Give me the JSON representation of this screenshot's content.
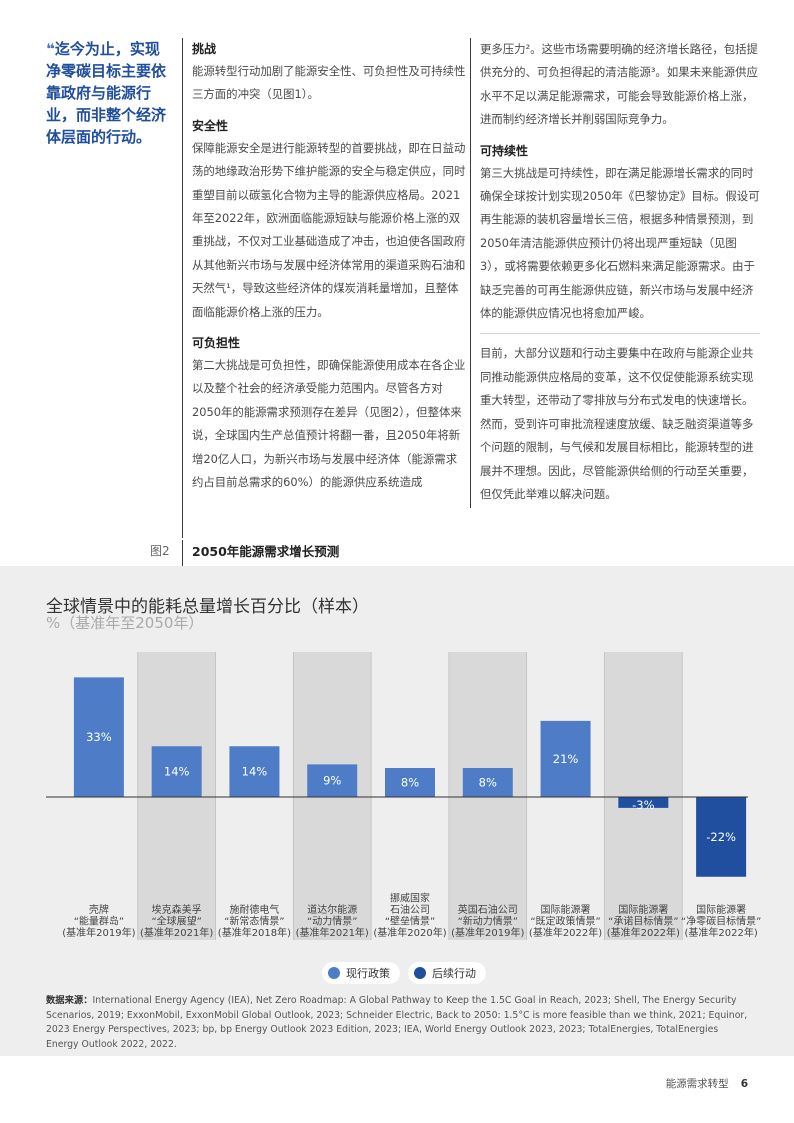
{
  "pullquote": {
    "mark": "❝",
    "text": "迄今为止，实现净零碳目标主要依靠政府与能源行业，而非整个经济体层面的行动。"
  },
  "col1": {
    "h_challenge": "挑战",
    "p_intro": "能源转型行动加剧了能源安全性、可负担性及可持续性三方面的冲突（见图1）。",
    "h_security": "安全性",
    "p_security": "保障能源安全是进行能源转型的首要挑战，即在日益动荡的地缘政治形势下维护能源的安全与稳定供应，同时重塑目前以碳氢化合物为主导的能源供应格局。2021年至2022年，欧洲面临能源短缺与能源价格上涨的双重挑战，不仅对工业基础造成了冲击，也迫使各国政府从其他新兴市场与发展中经济体常用的渠道采购石油和天然气¹，导致这些经济体的煤炭消耗量增加，且整体面临能源价格上涨的压力。",
    "h_afford": "可负担性",
    "p_afford": "第二大挑战是可负担性，即确保能源使用成本在各企业以及整个社会的经济承受能力范围内。尽管各方对2050年的能源需求预测存在差异（见图2），但整体来说，全球国内生产总值预计将翻一番，且2050年将新增20亿人口，为新兴市场与发展中经济体（能源需求约占目前总需求的60%）的能源供应系统造成"
  },
  "col2": {
    "p_cont": "更多压力²。这些市场需要明确的经济增长路径，包括提供充分的、可负担得起的清洁能源³。如果未来能源供应水平不足以满足能源需求，可能会导致能源价格上涨，进而制约经济增长并削弱国际竞争力。",
    "h_sustain": "可持续性",
    "p_sustain": "第三大挑战是可持续性，即在满足能源增长需求的同时确保全球按计划实现2050年《巴黎协定》目标。假设可再生能源的装机容量增长三倍，根据多种情景预测，到2050年清洁能源供应预计仍将出现严重短缺（见图3），或将需要依赖更多化石燃料来满足能源需求。由于缺乏完善的可再生能源供应链，新兴市场与发展中经济体的能源供应情况也将愈加严峻。",
    "p_now": "目前，大部分议题和行动主要集中在政府与能源企业共同推动能源供应格局的变革，这不仅促使能源系统实现重大转型，还带动了零排放与分布式发电的快速增长。然而，受到许可审批流程速度放缓、缺乏融资渠道等多个问题的限制，与气候和发展目标相比，能源转型的进展并不理想。因此，尽管能源供给侧的行动至关重要，但仅凭此举难以解决问题。"
  },
  "figure": {
    "label": "图2",
    "title": "2050年能源需求增长预测"
  },
  "chart_data": {
    "type": "bar",
    "title": "全球情景中的能耗总量增长百分比（样本）",
    "subtitle": "%（基准年至2050年）",
    "ylim": [
      -30,
      40
    ],
    "categories": [
      [
        "壳牌",
        "“能量群岛”",
        "(基准年2019年)"
      ],
      [
        "埃克森美孚",
        "“全球展望”",
        "(基准年2021年)"
      ],
      [
        "施耐德电气",
        "“新常态情景”",
        "(基准年2018年)"
      ],
      [
        "道达尔能源",
        "“动力情景”",
        "(基准年2021年)"
      ],
      [
        "挪威国家",
        "石油公司",
        "“壁垒情景”",
        "(基准年2020年)"
      ],
      [
        "英国石油公司",
        "“新动力情景”",
        "(基准年2019年)"
      ],
      [
        "国际能源署",
        "“既定政策情景”",
        "(基准年2022年)"
      ],
      [
        "国际能源署",
        "“承诺目标情景”",
        "(基准年2022年)"
      ],
      [
        "国际能源署",
        "“净零碳目标情景”",
        "(基准年2022年)"
      ]
    ],
    "values": [
      33,
      14,
      14,
      9,
      8,
      8,
      21,
      -3,
      -22
    ],
    "value_labels": [
      "33%",
      "14%",
      "14%",
      "9%",
      "8%",
      "8%",
      "21%",
      "-3%",
      "-22%"
    ],
    "series_type": [
      "current",
      "current",
      "current",
      "current",
      "current",
      "current",
      "current",
      "follow",
      "follow"
    ],
    "colors": {
      "current": "#4f7cc6",
      "follow": "#1f4f9e",
      "panel": "#d9d9d9"
    },
    "legend": [
      {
        "name": "现行政策",
        "color": "#4f7cc6"
      },
      {
        "name": "后续行动",
        "color": "#1f4f9e"
      }
    ]
  },
  "sources": {
    "label": "数据来源：",
    "text": "International Energy Agency (IEA), Net Zero Roadmap: A Global Pathway to Keep the 1.5C Goal in Reach, 2023; Shell, The Energy Security Scenarios, 2019; ExxonMobil, ExxonMobil Global Outlook, 2023; Schneider Electric, Back to 2050: 1.5°C is more feasible than we think, 2021; Equinor, 2023 Energy Perspectives, 2023; bp, bp Energy Outlook 2023 Edition, 2023; IEA, World Energy Outlook 2023, 2023; TotalEnergies, TotalEnergies Energy Outlook 2022, 2022."
  },
  "footer": {
    "section": "能源需求转型",
    "page": "6"
  }
}
